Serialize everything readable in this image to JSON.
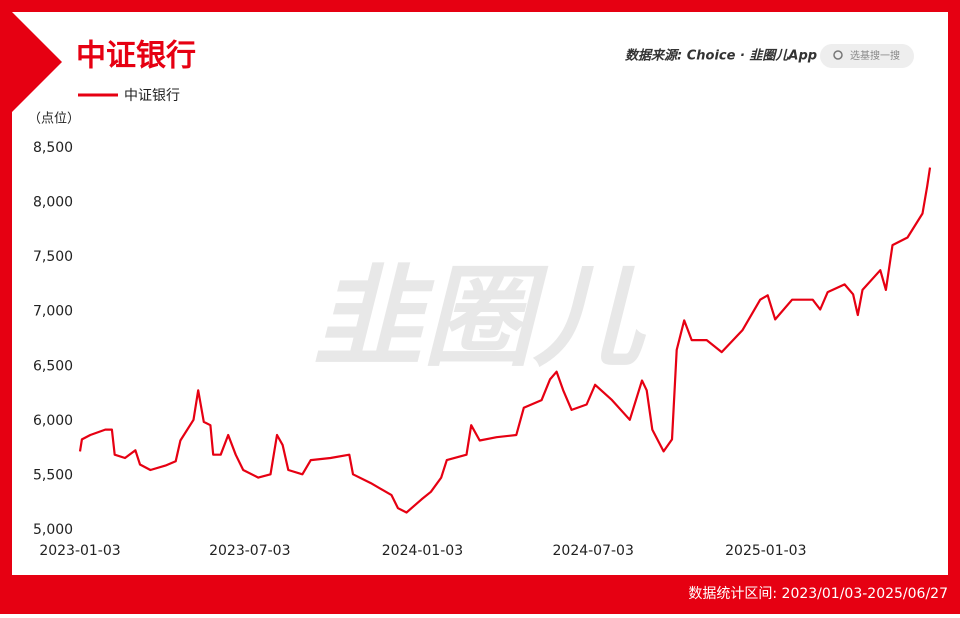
{
  "chart_data": {
    "type": "line",
    "title": "中证银行",
    "source": "数据来源: Choice · 韭圈儿App",
    "search_placeholder": "选基搜一搜",
    "watermark": "韭圈儿",
    "y_label": "（点位）",
    "footer": "数据统计区间: 2023/01/03-2025/06/27",
    "x": [
      "2023-01-03",
      "2023-01-05",
      "2023-01-14",
      "2023-01-30",
      "2023-02-06",
      "2023-02-09",
      "2023-02-20",
      "2023-03-03",
      "2023-03-08",
      "2023-03-19",
      "2023-04-04",
      "2023-04-15",
      "2023-04-20",
      "2023-05-04",
      "2023-05-09",
      "2023-05-15",
      "2023-05-22",
      "2023-05-25",
      "2023-06-02",
      "2023-06-10",
      "2023-06-18",
      "2023-06-26",
      "2023-07-12",
      "2023-07-25",
      "2023-08-01",
      "2023-08-07",
      "2023-08-13",
      "2023-08-28",
      "2023-09-06",
      "2023-09-27",
      "2023-10-17",
      "2023-10-21",
      "2023-11-09",
      "2023-12-01",
      "2023-12-08",
      "2023-12-17",
      "2024-01-02",
      "2024-01-12",
      "2024-01-23",
      "2024-01-29",
      "2024-02-19",
      "2024-02-24",
      "2024-03-04",
      "2024-03-22",
      "2024-04-12",
      "2024-04-20",
      "2024-05-09",
      "2024-05-18",
      "2024-05-25",
      "2024-06-01",
      "2024-06-10",
      "2024-06-26",
      "2024-07-05",
      "2024-07-23",
      "2024-08-11",
      "2024-08-24",
      "2024-08-29",
      "2024-09-04",
      "2024-09-16",
      "2024-09-25",
      "2024-09-30",
      "2024-10-08",
      "2024-10-16",
      "2024-11-01",
      "2024-11-17",
      "2024-12-09",
      "2024-12-28",
      "2025-01-05",
      "2025-01-13",
      "2025-01-31",
      "2025-02-22",
      "2025-03-02",
      "2025-03-10",
      "2025-03-28",
      "2025-04-06",
      "2025-04-11",
      "2025-04-16",
      "2025-05-05",
      "2025-05-11",
      "2025-05-18",
      "2025-06-03",
      "2025-06-19",
      "2025-06-24",
      "2025-06-27"
    ],
    "series": [
      {
        "name": "中证银行",
        "color": "#e60012",
        "values": [
          5720,
          5830,
          5870,
          5920,
          5920,
          5690,
          5660,
          5730,
          5600,
          5550,
          5590,
          5630,
          5820,
          6010,
          6280,
          5990,
          5960,
          5690,
          5690,
          5870,
          5690,
          5550,
          5480,
          5510,
          5870,
          5780,
          5550,
          5510,
          5640,
          5660,
          5690,
          5510,
          5430,
          5320,
          5200,
          5160,
          5280,
          5350,
          5480,
          5640,
          5690,
          5960,
          5820,
          5850,
          5870,
          6120,
          6190,
          6380,
          6450,
          6280,
          6100,
          6150,
          6330,
          6190,
          6010,
          6370,
          6280,
          5920,
          5720,
          5830,
          6650,
          6920,
          6740,
          6740,
          6630,
          6830,
          7110,
          7150,
          6930,
          7110,
          7110,
          7020,
          7180,
          7250,
          7160,
          6970,
          7200,
          7380,
          7200,
          7610,
          7680,
          7900,
          8150,
          8320
        ]
      }
    ],
    "xlim": [
      "2023-01-03",
      "2025-06-27"
    ],
    "xticks": [
      "2023-01-03",
      "2023-07-03",
      "2024-01-03",
      "2024-07-03",
      "2025-01-03"
    ],
    "ylim": [
      5000,
      8500
    ],
    "yticks": [
      {
        "value": 5000,
        "label": "5,000"
      },
      {
        "value": 5500,
        "label": "5,500"
      },
      {
        "value": 6000,
        "label": "6,000"
      },
      {
        "value": 6500,
        "label": "6,500"
      },
      {
        "value": 7000,
        "label": "7,000"
      },
      {
        "value": 7500,
        "label": "7,500"
      },
      {
        "value": 8000,
        "label": "8,000"
      },
      {
        "value": 8500,
        "label": "8,500"
      }
    ],
    "grid": false
  }
}
